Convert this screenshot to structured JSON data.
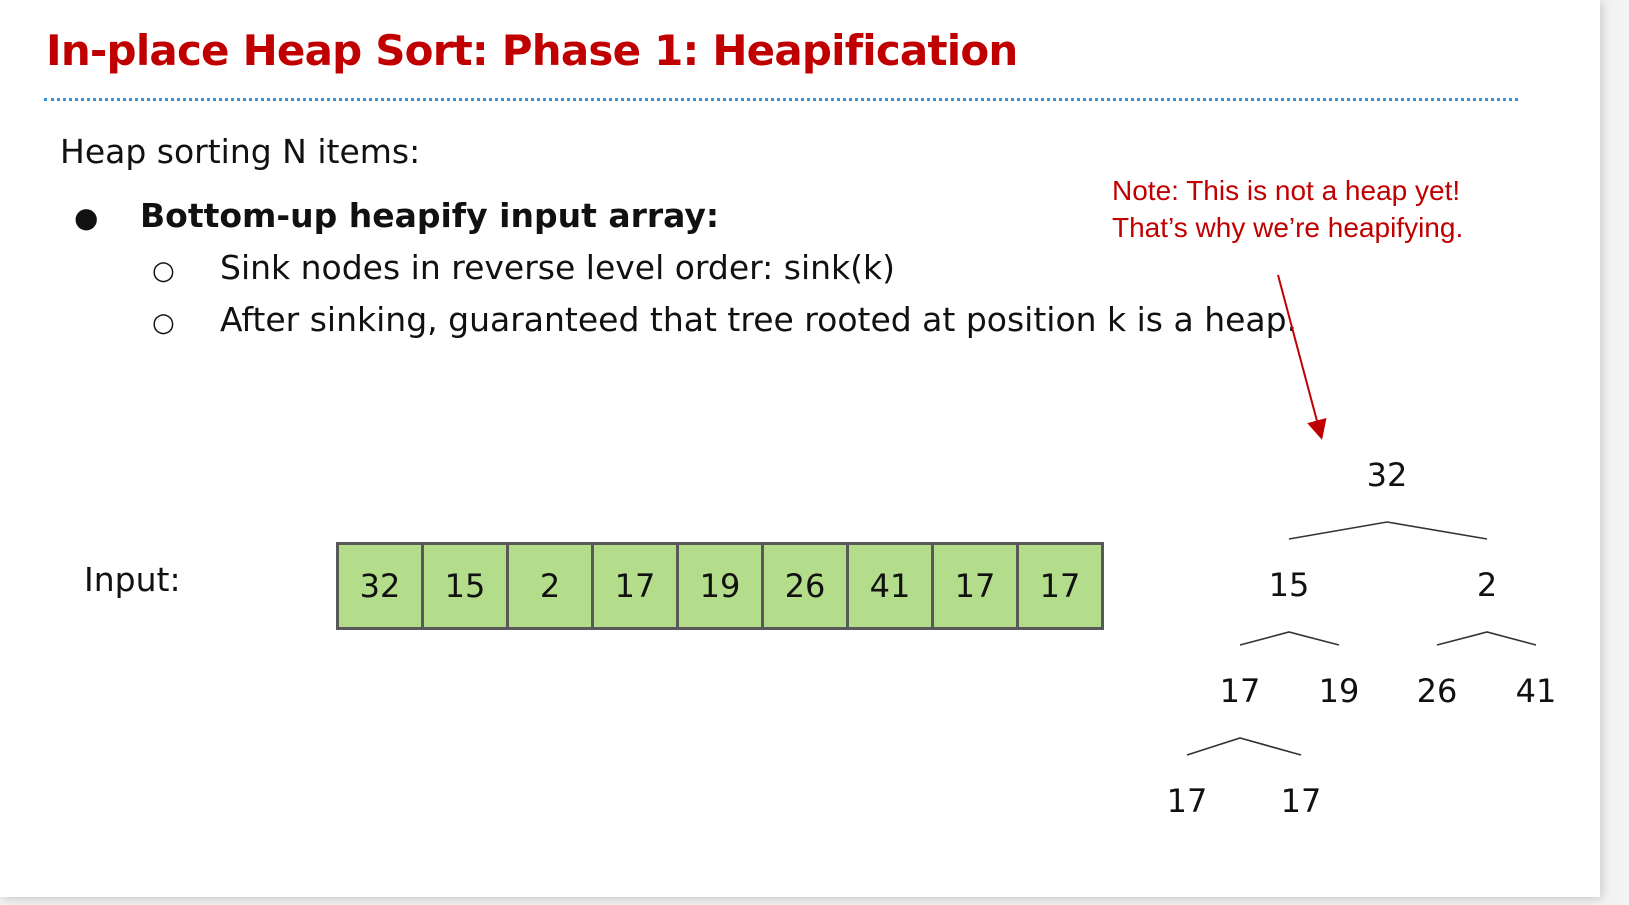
{
  "slide": {
    "title": "In-place Heap Sort: Phase 1: Heapification",
    "intro": "Heap sorting N items:",
    "bullets": [
      {
        "marker": "●",
        "text": "Bottom-up heapify input array:"
      }
    ],
    "sub_bullets": [
      {
        "marker": "○",
        "text": "Sink nodes in reverse level order: sink(k)"
      },
      {
        "marker": "○",
        "text": "After sinking, guaranteed that tree rooted at position k is a heap."
      }
    ],
    "note": {
      "line1": "Note: This is not a heap yet!",
      "line2": "That’s why we’re heapifying.",
      "color": "#c00000"
    }
  },
  "input": {
    "label": "Input:",
    "values": [
      "32",
      "15",
      "2",
      "17",
      "19",
      "26",
      "41",
      "17",
      "17"
    ],
    "cell_color": "#b3dd8b"
  },
  "tree": {
    "nodes": [
      "32",
      "15",
      "2",
      "17",
      "19",
      "26",
      "41",
      "17",
      "17"
    ]
  },
  "colors": {
    "title": "#c00000",
    "rule": "#3a8fd6"
  }
}
